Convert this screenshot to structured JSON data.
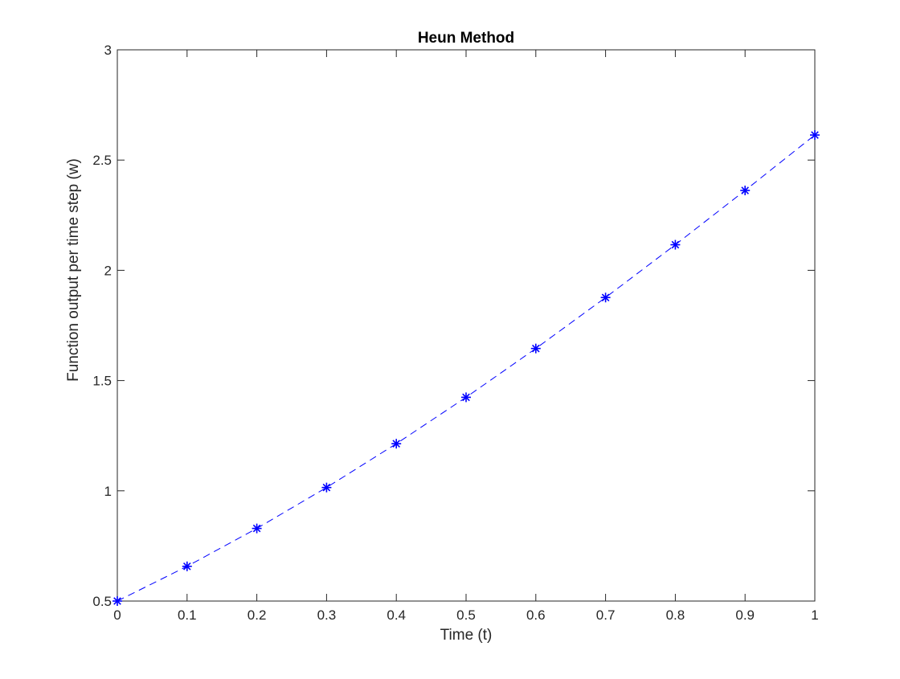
{
  "chart_data": {
    "type": "line",
    "title": "Heun Method",
    "xlabel": "Time (t)",
    "ylabel": "Function output per time step (w)",
    "xlim": [
      0,
      1
    ],
    "ylim": [
      0.5,
      3
    ],
    "xticks": [
      0,
      0.1,
      0.2,
      0.3,
      0.4,
      0.5,
      0.6,
      0.7,
      0.8,
      0.9,
      1
    ],
    "xtick_labels": [
      "0",
      "0.1",
      "0.2",
      "0.3",
      "0.4",
      "0.5",
      "0.6",
      "0.7",
      "0.8",
      "0.9",
      "1"
    ],
    "yticks": [
      0.5,
      1,
      1.5,
      2,
      2.5,
      3
    ],
    "ytick_labels": [
      "0.5",
      "1",
      "1.5",
      "2",
      "2.5",
      "3"
    ],
    "grid": false,
    "series": [
      {
        "line_style": "dashed",
        "marker": "asterisk",
        "color": "#0000ff",
        "x": [
          0,
          0.1,
          0.2,
          0.3,
          0.4,
          0.5,
          0.6,
          0.7,
          0.8,
          0.9,
          1
        ],
        "y": [
          0.5,
          0.6575,
          0.8294,
          1.015,
          1.2136,
          1.4241,
          1.6455,
          1.8766,
          2.116,
          2.3622,
          2.6136
        ]
      }
    ]
  }
}
